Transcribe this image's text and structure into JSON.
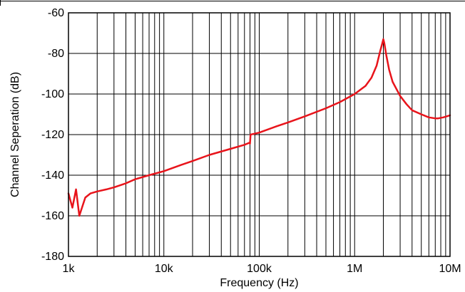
{
  "chart_data": {
    "type": "line",
    "title": "",
    "xlabel": "Frequency (Hz)",
    "ylabel": "Channel Seperation (dB)",
    "x_scale": "log",
    "xlim": [
      1000,
      10000000
    ],
    "ylim": [
      -180,
      -60
    ],
    "x_ticks": [
      {
        "value": 1000,
        "label": "1k"
      },
      {
        "value": 10000,
        "label": "10k"
      },
      {
        "value": 100000,
        "label": "100k"
      },
      {
        "value": 1000000,
        "label": "1M"
      },
      {
        "value": 10000000,
        "label": "10M"
      }
    ],
    "y_ticks": [
      {
        "value": -60,
        "label": "-60"
      },
      {
        "value": -80,
        "label": "-80"
      },
      {
        "value": -100,
        "label": "-100"
      },
      {
        "value": -120,
        "label": "-120"
      },
      {
        "value": -140,
        "label": "-140"
      },
      {
        "value": -160,
        "label": "-160"
      },
      {
        "value": -180,
        "label": "-180"
      }
    ],
    "grid": true,
    "line_color": "#e8141b",
    "series": [
      {
        "x": [
          1000,
          1100,
          1200,
          1300,
          1500,
          1700,
          2000,
          2500,
          3000,
          4000,
          5000,
          7000,
          10000,
          15000,
          20000,
          30000,
          50000,
          70000,
          79000,
          80000,
          81000,
          100000,
          150000,
          200000,
          300000,
          500000,
          700000,
          1000000,
          1300000,
          1500000,
          1700000,
          1850000,
          1950000,
          2000000,
          2050000,
          2150000,
          2300000,
          2500000,
          3000000,
          3500000,
          4000000,
          5000000,
          6000000,
          7000000,
          7500000,
          8500000,
          10000000
        ],
        "y": [
          -149,
          -156,
          -147,
          -160,
          -151,
          -149,
          -148,
          -147,
          -146,
          -144,
          -142,
          -140,
          -138,
          -135,
          -133,
          -130,
          -127,
          -125,
          -124,
          -124.5,
          -120,
          -119,
          -116,
          -114,
          -111,
          -107,
          -104,
          -100,
          -96,
          -92,
          -86,
          -79,
          -75,
          -73,
          -75,
          -81,
          -88,
          -94,
          -101,
          -105,
          -108,
          -110,
          -111.5,
          -112,
          -112,
          -111.5,
          -110.5
        ]
      }
    ]
  }
}
